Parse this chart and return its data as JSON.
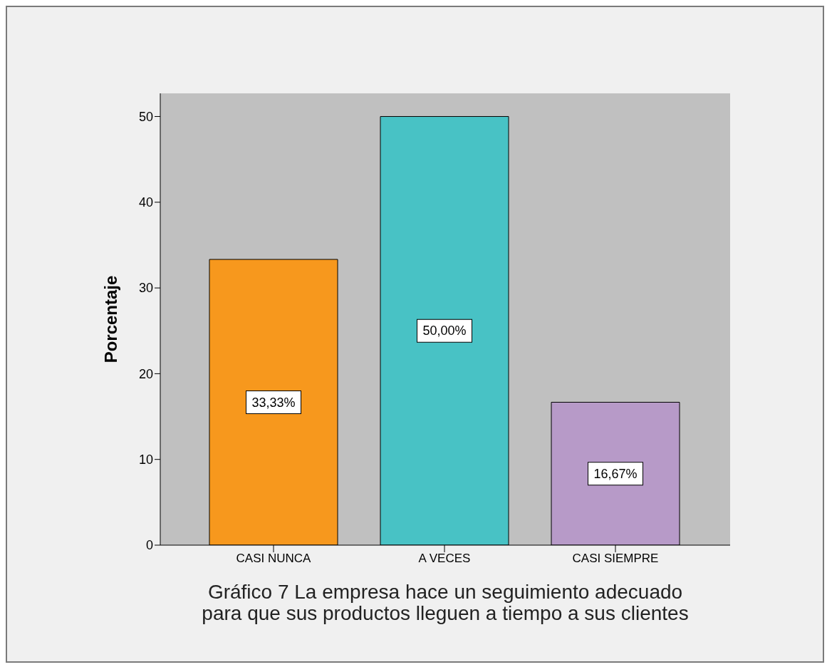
{
  "chart_data": {
    "type": "bar",
    "title": "Gráfico 7 La empresa hace un seguimiento adecuado\npara que sus productos lleguen a tiempo a sus clientes",
    "ylabel": "Porcentaje",
    "categories": [
      "CASI NUNCA",
      "A VECES",
      "CASI SIEMPRE"
    ],
    "values": [
      33.33,
      50.0,
      16.67
    ],
    "colors": [
      "#f7981d",
      "#48c2c5",
      "#b79ac8"
    ],
    "value_labels": [
      "33,33%",
      "50,00%",
      "16,67%"
    ],
    "ylim": [
      0,
      52.7
    ],
    "yticks": [
      0,
      10,
      20,
      30,
      40,
      50
    ]
  }
}
